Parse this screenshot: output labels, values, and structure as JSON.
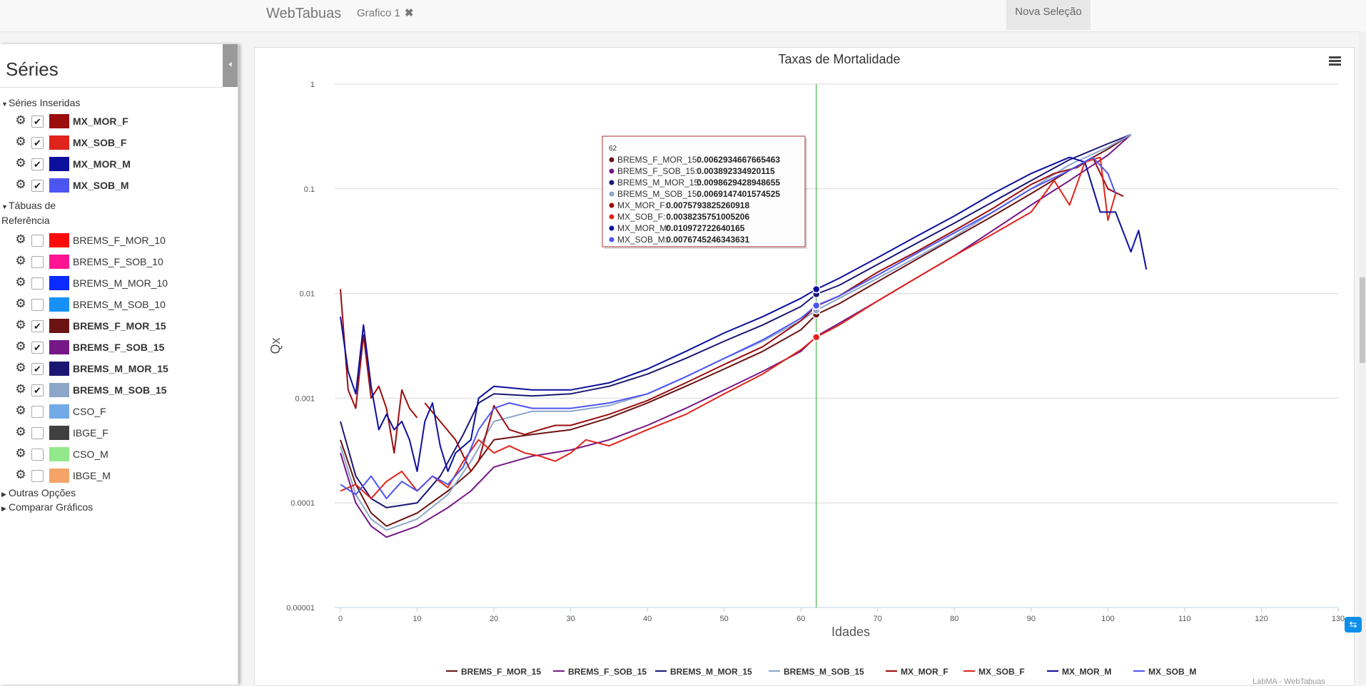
{
  "topbar": {
    "brand": "WebTabuas",
    "tab_label": "Grafico 1",
    "tab_close": "✖",
    "button": "Nova Seleção"
  },
  "sidebar": {
    "title": "Séries",
    "collapse_icon": "arrow-left-icon",
    "groups": {
      "inserted": "Séries Inseridas",
      "reference_1": "Tábuas de",
      "reference_2": "Referência",
      "other": "Outras Opções",
      "compare": "Comparar Gráficos"
    },
    "inserted": [
      {
        "label": "MX_MOR_F",
        "checked": true,
        "color": "#9b0d0d"
      },
      {
        "label": "MX_SOB_F",
        "checked": true,
        "color": "#e0241c"
      },
      {
        "label": "MX_MOR_M",
        "checked": true,
        "color": "#0c0f9c"
      },
      {
        "label": "MX_SOB_M",
        "checked": true,
        "color": "#4d55f0"
      }
    ],
    "reference": [
      {
        "label": "BREMS_F_MOR_10",
        "checked": false,
        "color": "#ff0a0a"
      },
      {
        "label": "BREMS_F_SOB_10",
        "checked": false,
        "color": "#ff1493"
      },
      {
        "label": "BREMS_M_MOR_10",
        "checked": false,
        "color": "#0a2aff"
      },
      {
        "label": "BREMS_M_SOB_10",
        "checked": false,
        "color": "#1591f7"
      },
      {
        "label": "BREMS_F_MOR_15",
        "checked": true,
        "color": "#6b1313"
      },
      {
        "label": "BREMS_F_SOB_15",
        "checked": true,
        "color": "#751787"
      },
      {
        "label": "BREMS_M_MOR_15",
        "checked": true,
        "color": "#1a1773"
      },
      {
        "label": "BREMS_M_SOB_15",
        "checked": true,
        "color": "#8ca6c9"
      },
      {
        "label": "CSO_F",
        "checked": false,
        "color": "#72aae8"
      },
      {
        "label": "IBGE_F",
        "checked": false,
        "color": "#404040"
      },
      {
        "label": "CSO_M",
        "checked": false,
        "color": "#93e88c"
      },
      {
        "label": "IBGE_M",
        "checked": false,
        "color": "#f4a468"
      }
    ]
  },
  "credit": "LabMA - WebTabuas",
  "tooltip": {
    "x": "62",
    "items": [
      {
        "name": "BREMS_F_MOR_15",
        "value": "0.0062934667665463",
        "color": "#6b1313"
      },
      {
        "name": "BREMS_F_SOB_15",
        "value": "0.003892334920115",
        "color": "#751787"
      },
      {
        "name": "BREMS_M_MOR_15",
        "value": "0.0098629428948655",
        "color": "#1a1773"
      },
      {
        "name": "BREMS_M_SOB_15",
        "value": "0.0069147401574525",
        "color": "#8ca6c9"
      },
      {
        "name": "MX_MOR_F",
        "value": "0.0075793825260918",
        "color": "#9b0d0d"
      },
      {
        "name": "MX_SOB_F",
        "value": "0.0038235751005206",
        "color": "#e0241c"
      },
      {
        "name": "MX_MOR_M",
        "value": "0.010972722640165",
        "color": "#0c0f9c"
      },
      {
        "name": "MX_SOB_M",
        "value": "0.0076745246343631",
        "color": "#4d55f0"
      }
    ]
  },
  "chart_data": {
    "type": "line",
    "title": "Taxas de Mortalidade",
    "xlabel": "Idades",
    "ylabel": "Qx",
    "xlim": [
      0,
      130
    ],
    "ylim": [
      1e-05,
      1
    ],
    "yscale": "log",
    "x_ticks": [
      "0",
      "10",
      "20",
      "30",
      "40",
      "50",
      "60",
      "70",
      "80",
      "90",
      "100",
      "110",
      "120",
      "130"
    ],
    "y_ticks": [
      "1",
      "0.1",
      "0.01",
      "0.001",
      "0.0001",
      "0.00001"
    ],
    "crosshair_x": 62,
    "grid": true,
    "legend": "bottom",
    "series": [
      {
        "name": "BREMS_F_MOR_15",
        "color": "#6b1313",
        "points": [
          [
            0,
            0.0004
          ],
          [
            2,
            0.00015
          ],
          [
            4,
            8e-05
          ],
          [
            6,
            6e-05
          ],
          [
            10,
            8e-05
          ],
          [
            14,
            0.00013
          ],
          [
            17,
            0.0002
          ],
          [
            20,
            0.0004
          ],
          [
            25,
            0.00045
          ],
          [
            30,
            0.0005
          ],
          [
            35,
            0.00065
          ],
          [
            40,
            0.0009
          ],
          [
            45,
            0.0013
          ],
          [
            50,
            0.0019
          ],
          [
            55,
            0.0028
          ],
          [
            60,
            0.0045
          ],
          [
            62,
            0.0062934667665463
          ],
          [
            65,
            0.008
          ],
          [
            70,
            0.013
          ],
          [
            75,
            0.021
          ],
          [
            80,
            0.034
          ],
          [
            85,
            0.055
          ],
          [
            90,
            0.09
          ],
          [
            95,
            0.15
          ],
          [
            100,
            0.24
          ],
          [
            103,
            0.33
          ]
        ]
      },
      {
        "name": "BREMS_F_SOB_15",
        "color": "#751787",
        "points": [
          [
            0,
            0.0003
          ],
          [
            2,
            0.0001
          ],
          [
            4,
            6e-05
          ],
          [
            6,
            4.7e-05
          ],
          [
            10,
            6e-05
          ],
          [
            14,
            9e-05
          ],
          [
            17,
            0.00013
          ],
          [
            20,
            0.00022
          ],
          [
            25,
            0.00028
          ],
          [
            30,
            0.00032
          ],
          [
            35,
            0.0004
          ],
          [
            40,
            0.00055
          ],
          [
            45,
            0.0008
          ],
          [
            50,
            0.0012
          ],
          [
            55,
            0.0018
          ],
          [
            60,
            0.0028
          ],
          [
            62,
            0.003892334920115
          ],
          [
            65,
            0.0052
          ],
          [
            70,
            0.0085
          ],
          [
            75,
            0.014
          ],
          [
            80,
            0.023
          ],
          [
            85,
            0.04
          ],
          [
            90,
            0.07
          ],
          [
            95,
            0.12
          ],
          [
            100,
            0.21
          ],
          [
            103,
            0.33
          ]
        ]
      },
      {
        "name": "BREMS_M_MOR_15",
        "color": "#1a1773",
        "points": [
          [
            0,
            0.0006
          ],
          [
            2,
            0.00018
          ],
          [
            4,
            0.00011
          ],
          [
            6,
            9e-05
          ],
          [
            10,
            0.0001
          ],
          [
            13,
            0.00018
          ],
          [
            16,
            0.00045
          ],
          [
            18,
            0.0009
          ],
          [
            20,
            0.0011
          ],
          [
            25,
            0.00105
          ],
          [
            30,
            0.0011
          ],
          [
            35,
            0.0013
          ],
          [
            40,
            0.0017
          ],
          [
            45,
            0.0024
          ],
          [
            50,
            0.0035
          ],
          [
            55,
            0.005
          ],
          [
            60,
            0.0075
          ],
          [
            62,
            0.0098629428948655
          ],
          [
            65,
            0.012
          ],
          [
            70,
            0.019
          ],
          [
            75,
            0.03
          ],
          [
            80,
            0.047
          ],
          [
            85,
            0.075
          ],
          [
            90,
            0.12
          ],
          [
            95,
            0.19
          ],
          [
            100,
            0.27
          ],
          [
            103,
            0.33
          ]
        ]
      },
      {
        "name": "BREMS_M_SOB_15",
        "color": "#8ca6c9",
        "points": [
          [
            0,
            0.00035
          ],
          [
            2,
            0.00012
          ],
          [
            4,
            7e-05
          ],
          [
            6,
            5.5e-05
          ],
          [
            10,
            7e-05
          ],
          [
            14,
            0.00012
          ],
          [
            17,
            0.00025
          ],
          [
            20,
            0.0006
          ],
          [
            25,
            0.00075
          ],
          [
            30,
            0.00075
          ],
          [
            35,
            0.00085
          ],
          [
            40,
            0.0011
          ],
          [
            45,
            0.0016
          ],
          [
            50,
            0.0024
          ],
          [
            55,
            0.0035
          ],
          [
            60,
            0.0055
          ],
          [
            62,
            0.0069147401574525
          ],
          [
            65,
            0.009
          ],
          [
            70,
            0.014
          ],
          [
            75,
            0.022
          ],
          [
            80,
            0.035
          ],
          [
            85,
            0.06
          ],
          [
            90,
            0.1
          ],
          [
            95,
            0.17
          ],
          [
            100,
            0.25
          ],
          [
            103,
            0.33
          ]
        ]
      },
      {
        "name": "MX_MOR_F",
        "color": "#9b0d0d",
        "points": [
          [
            0,
            0.011
          ],
          [
            1,
            0.0012
          ],
          [
            2,
            0.0008
          ],
          [
            3,
            0.004
          ],
          [
            4,
            0.001
          ],
          [
            5,
            0.0013
          ],
          [
            6,
            0.0008
          ],
          [
            7,
            0.0003
          ],
          [
            8,
            0.0012
          ],
          [
            9,
            0.0008
          ],
          [
            10,
            0.00065
          ],
          null,
          [
            11,
            0.0009
          ],
          [
            13,
            0.0006
          ],
          [
            15,
            0.0004
          ],
          [
            17,
            0.0002
          ],
          [
            18,
            0.00025
          ],
          [
            20,
            0.00085
          ],
          [
            22,
            0.0005
          ],
          [
            24,
            0.00045
          ],
          [
            26,
            0.0005
          ],
          [
            28,
            0.00055
          ],
          [
            30,
            0.00055
          ],
          [
            35,
            0.0007
          ],
          [
            40,
            0.00095
          ],
          [
            45,
            0.0014
          ],
          [
            50,
            0.0021
          ],
          [
            55,
            0.0031
          ],
          [
            60,
            0.0055
          ],
          [
            62,
            0.0075793825260918
          ],
          [
            65,
            0.0095
          ],
          [
            70,
            0.016
          ],
          [
            75,
            0.025
          ],
          [
            80,
            0.04
          ],
          [
            85,
            0.065
          ],
          [
            90,
            0.11
          ],
          [
            93,
            0.14
          ],
          [
            96,
            0.16
          ],
          [
            98,
            0.2
          ],
          [
            100,
            0.1
          ],
          [
            102,
            0.085
          ]
        ]
      },
      {
        "name": "MX_SOB_F",
        "color": "#e0241c",
        "points": [
          [
            0,
            0.00013
          ],
          [
            2,
            0.00015
          ],
          [
            4,
            0.00011
          ],
          [
            6,
            0.00016
          ],
          [
            8,
            0.0002
          ],
          [
            10,
            0.00013
          ],
          [
            12,
            0.00018
          ],
          [
            14,
            0.00014
          ],
          [
            16,
            0.00025
          ],
          [
            18,
            0.0004
          ],
          [
            20,
            0.0003
          ],
          [
            22,
            0.00035
          ],
          [
            24,
            0.0003
          ],
          [
            26,
            0.00028
          ],
          [
            28,
            0.00025
          ],
          [
            30,
            0.0003
          ],
          [
            32,
            0.0004
          ],
          [
            35,
            0.00035
          ],
          [
            40,
            0.0005
          ],
          [
            45,
            0.0007
          ],
          [
            50,
            0.0011
          ],
          [
            55,
            0.0017
          ],
          [
            60,
            0.0029
          ],
          [
            62,
            0.0038235751005206
          ],
          [
            65,
            0.005
          ],
          [
            70,
            0.0085
          ],
          [
            75,
            0.014
          ],
          [
            80,
            0.023
          ],
          [
            85,
            0.037
          ],
          [
            90,
            0.06
          ],
          [
            93,
            0.12
          ],
          [
            95,
            0.07
          ],
          [
            97,
            0.18
          ],
          [
            99,
            0.2
          ],
          [
            100,
            0.05
          ],
          [
            101,
            0.09
          ]
        ]
      },
      {
        "name": "MX_MOR_M",
        "color": "#0c0f9c",
        "points": [
          [
            0,
            0.006
          ],
          [
            1,
            0.0018
          ],
          [
            2,
            0.0011
          ],
          [
            3,
            0.005
          ],
          [
            4,
            0.0013
          ],
          [
            5,
            0.0005
          ],
          [
            6,
            0.0007
          ],
          [
            7,
            0.0005
          ],
          [
            8,
            0.0006
          ],
          [
            9,
            0.0004
          ],
          [
            10,
            0.0002
          ],
          [
            11,
            0.0006
          ],
          [
            12,
            0.0009
          ],
          [
            13,
            0.00035
          ],
          [
            14,
            0.0002
          ],
          [
            15,
            0.0003
          ],
          [
            17,
            0.0004
          ],
          [
            18,
            0.001
          ],
          [
            20,
            0.0013
          ],
          [
            25,
            0.0012
          ],
          [
            30,
            0.0012
          ],
          [
            35,
            0.0014
          ],
          [
            40,
            0.0019
          ],
          [
            45,
            0.0028
          ],
          [
            50,
            0.0042
          ],
          [
            55,
            0.006
          ],
          [
            60,
            0.009
          ],
          [
            62,
            0.010972722640165
          ],
          [
            65,
            0.014
          ],
          [
            70,
            0.022
          ],
          [
            75,
            0.035
          ],
          [
            80,
            0.055
          ],
          [
            85,
            0.09
          ],
          [
            90,
            0.14
          ],
          [
            95,
            0.2
          ],
          [
            97,
            0.18
          ],
          [
            99,
            0.06
          ],
          [
            101,
            0.06
          ],
          [
            103,
            0.025
          ],
          [
            104,
            0.04
          ],
          [
            105,
            0.017
          ]
        ]
      },
      {
        "name": "MX_SOB_M",
        "color": "#4d55f0",
        "points": [
          [
            0,
            0.00015
          ],
          [
            2,
            0.00012
          ],
          [
            4,
            0.00018
          ],
          [
            6,
            0.00011
          ],
          [
            8,
            0.00016
          ],
          [
            10,
            0.00013
          ],
          [
            12,
            0.00018
          ],
          [
            14,
            0.00015
          ],
          [
            16,
            0.00022
          ],
          [
            18,
            0.0005
          ],
          [
            20,
            0.0008
          ],
          [
            22,
            0.0009
          ],
          [
            25,
            0.0008
          ],
          [
            30,
            0.0008
          ],
          [
            35,
            0.0009
          ],
          [
            40,
            0.0011
          ],
          [
            45,
            0.0016
          ],
          [
            50,
            0.0024
          ],
          [
            55,
            0.0036
          ],
          [
            60,
            0.0058
          ],
          [
            62,
            0.0076745246343631
          ],
          [
            65,
            0.0095
          ],
          [
            70,
            0.015
          ],
          [
            75,
            0.024
          ],
          [
            80,
            0.038
          ],
          [
            85,
            0.06
          ],
          [
            90,
            0.1
          ],
          [
            95,
            0.15
          ],
          [
            98,
            0.2
          ],
          [
            100,
            0.14
          ],
          [
            101,
            0.09
          ]
        ]
      }
    ]
  }
}
